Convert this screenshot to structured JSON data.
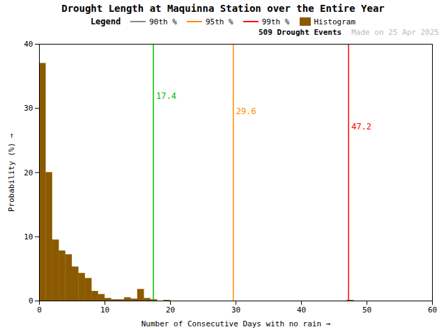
{
  "chart_data": {
    "type": "histogram",
    "title": "Drought Length at Maquinna Station over the Entire Year",
    "x_label": "Number of Consecutive Days with no rain",
    "y_label": "Probability (%)",
    "name": "Histogram",
    "color": "#8B5A00",
    "bins": [
      0,
      1,
      2,
      3,
      4,
      5,
      6,
      7,
      8,
      9,
      10,
      11,
      12,
      13,
      14,
      15,
      16,
      17,
      18,
      19,
      20,
      21,
      22,
      23,
      24,
      25,
      26,
      27,
      28,
      29,
      30,
      31,
      32,
      33,
      34,
      35,
      36,
      37,
      38,
      39,
      40,
      41,
      42,
      43,
      44,
      45,
      46,
      47,
      48,
      49,
      50,
      51,
      52,
      53,
      54,
      55,
      56,
      57,
      58,
      59,
      60
    ],
    "values": [
      37.0,
      20.0,
      9.5,
      7.8,
      7.2,
      5.3,
      4.3,
      3.5,
      1.5,
      1.0,
      0.4,
      0.2,
      0.2,
      0.5,
      0.3,
      1.8,
      0.4,
      0.2,
      0.0,
      0.1,
      0.0,
      0.0,
      0.0,
      0.0,
      0.0,
      0.0,
      0.0,
      0.0,
      0.0,
      0.0,
      0.0,
      0.0,
      0.0,
      0.0,
      0.0,
      0.0,
      0.0,
      0.0,
      0.0,
      0.0,
      0.0,
      0.0,
      0.0,
      0.0,
      0.0,
      0.0,
      0.0,
      0.1,
      0.0,
      0.0,
      0.0,
      0.0,
      0.0,
      0.0,
      0.0,
      0.0,
      0.0,
      0.0,
      0.0,
      0.0
    ],
    "lines": [
      {
        "x": 17.4,
        "name": "90th %",
        "color": "#00BB00",
        "legend_color": "#888888"
      },
      {
        "x": 29.6,
        "name": "95th %",
        "color": "#FF8C00",
        "legend_color": "#FF8C00"
      },
      {
        "x": 47.2,
        "name": "99th %",
        "color": "#FF0000",
        "legend_color": "#FF0000"
      }
    ],
    "legend_title": "Legend",
    "legend": "upper right",
    "annotations": [
      {
        "text": "509 Drought Events"
      },
      {
        "text": "Made on 25 Apr 2025",
        "color": "#BBBBBB"
      }
    ],
    "xlim": [
      0,
      60
    ],
    "ylim": [
      0,
      40
    ],
    "xticks": [
      0,
      10,
      20,
      30,
      40,
      50,
      60
    ],
    "yticks": [
      0,
      10,
      20,
      30,
      40
    ],
    "grid": false
  }
}
